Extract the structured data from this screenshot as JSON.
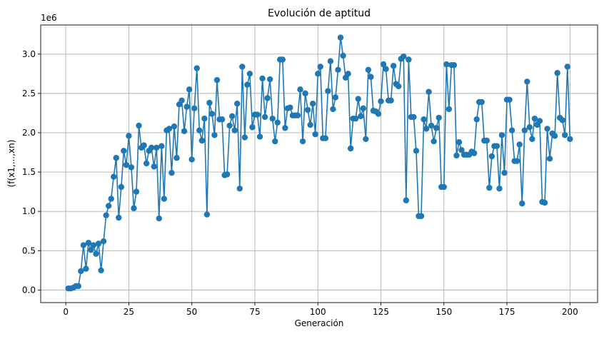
{
  "chart_data": {
    "type": "line",
    "title": "Evolución de aptitud",
    "xlabel": "Generación",
    "ylabel": "(f(x1,...,xn)",
    "offset_label": "1e6",
    "xlim": [
      -9.95,
      210.95
    ],
    "ylim": [
      -0.16,
      3.37
    ],
    "x_ticks": [
      0,
      25,
      50,
      75,
      100,
      125,
      150,
      175,
      200
    ],
    "y_ticks": [
      0.0,
      0.5,
      1.0,
      1.5,
      2.0,
      2.5,
      3.0
    ],
    "y_tick_labels": [
      "0.0",
      "0.5",
      "1.0",
      "1.5",
      "2.0",
      "2.5",
      "3.0"
    ],
    "grid": true,
    "marker": "circle",
    "line_color": "#1f77b4",
    "series": [
      {
        "x": [
          1,
          2,
          3,
          4,
          5,
          6,
          7,
          8,
          9,
          10,
          11,
          12,
          13,
          14,
          15,
          16,
          17,
          18,
          19,
          20,
          21,
          22,
          23,
          24,
          25,
          26,
          27,
          28,
          29,
          30,
          31,
          32,
          33,
          34,
          35,
          36,
          37,
          38,
          39,
          40,
          41,
          42,
          43,
          44,
          45,
          46,
          47,
          48,
          49,
          50,
          51,
          52,
          53,
          54,
          55,
          56,
          57,
          58,
          59,
          60,
          61,
          62,
          63,
          64,
          65,
          66,
          67,
          68,
          69,
          70,
          71,
          72,
          73,
          74,
          75,
          76,
          77,
          78,
          79,
          80,
          81,
          82,
          83,
          84,
          85,
          86,
          87,
          88,
          89,
          90,
          91,
          92,
          93,
          94,
          95,
          96,
          97,
          98,
          99,
          100,
          101,
          102,
          103,
          104,
          105,
          106,
          107,
          108,
          109,
          110,
          111,
          112,
          113,
          114,
          115,
          116,
          117,
          118,
          119,
          120,
          121,
          122,
          123,
          124,
          125,
          126,
          127,
          128,
          129,
          130,
          131,
          132,
          133,
          134,
          135,
          136,
          137,
          138,
          139,
          140,
          141,
          142,
          143,
          144,
          145,
          146,
          147,
          148,
          149,
          150,
          151,
          152,
          153,
          154,
          155,
          156,
          157,
          158,
          159,
          160,
          161,
          162,
          163,
          164,
          165,
          166,
          167,
          168,
          169,
          170,
          171,
          172,
          173,
          174,
          175,
          176,
          177,
          178,
          179,
          180,
          181,
          182,
          183,
          184,
          185,
          186,
          187,
          188,
          189,
          190,
          191,
          192,
          193,
          194,
          195,
          196,
          197,
          198,
          199,
          200
        ],
        "values": [
          0.02,
          0.02,
          0.03,
          0.05,
          0.05,
          0.24,
          0.57,
          0.27,
          0.6,
          0.51,
          0.57,
          0.46,
          0.59,
          0.25,
          0.62,
          0.95,
          1.07,
          1.16,
          1.44,
          1.68,
          0.92,
          1.31,
          1.77,
          1.59,
          1.96,
          1.56,
          1.04,
          1.25,
          2.09,
          1.81,
          1.84,
          1.61,
          1.77,
          1.81,
          1.57,
          1.81,
          0.91,
          1.83,
          1.16,
          2.03,
          2.05,
          1.49,
          2.08,
          1.68,
          2.36,
          2.41,
          2.02,
          2.33,
          2.55,
          1.66,
          2.31,
          2.82,
          2.03,
          1.9,
          2.18,
          0.96,
          2.38,
          2.24,
          1.97,
          2.67,
          2.17,
          2.17,
          1.46,
          1.47,
          2.09,
          2.21,
          2.03,
          2.37,
          1.29,
          2.84,
          1.94,
          2.61,
          2.75,
          2.07,
          2.23,
          2.23,
          1.95,
          2.69,
          2.2,
          2.44,
          2.68,
          2.18,
          1.89,
          2.13,
          2.93,
          2.93,
          2.06,
          2.31,
          2.32,
          2.22,
          2.22,
          2.22,
          2.55,
          1.89,
          2.5,
          2.29,
          2.1,
          2.37,
          1.98,
          2.75,
          2.84,
          1.93,
          1.93,
          2.53,
          2.91,
          2.3,
          2.45,
          2.8,
          3.21,
          2.98,
          2.7,
          2.75,
          1.8,
          2.18,
          2.18,
          2.43,
          2.21,
          2.31,
          1.92,
          2.8,
          2.71,
          2.28,
          2.27,
          2.24,
          2.4,
          2.87,
          2.81,
          2.41,
          2.41,
          2.85,
          2.62,
          2.59,
          2.94,
          2.97,
          1.14,
          2.93,
          2.2,
          2.2,
          1.77,
          0.94,
          0.94,
          2.17,
          2.05,
          2.52,
          2.09,
          1.89,
          2.06,
          2.19,
          1.31,
          1.31,
          2.87,
          2.3,
          2.86,
          2.86,
          1.71,
          1.88,
          1.78,
          1.72,
          1.72,
          1.72,
          1.76,
          1.74,
          2.17,
          2.39,
          2.39,
          1.9,
          1.9,
          1.3,
          1.7,
          1.83,
          1.83,
          1.29,
          1.97,
          1.49,
          2.42,
          2.42,
          2.03,
          1.64,
          1.64,
          1.85,
          1.1,
          2.03,
          2.65,
          2.07,
          1.92,
          2.18,
          2.1,
          2.15,
          1.12,
          1.11,
          2.05,
          1.67,
          1.99,
          1.96,
          2.76,
          2.19,
          2.16,
          1.97,
          2.84,
          1.92
        ]
      }
    ]
  }
}
